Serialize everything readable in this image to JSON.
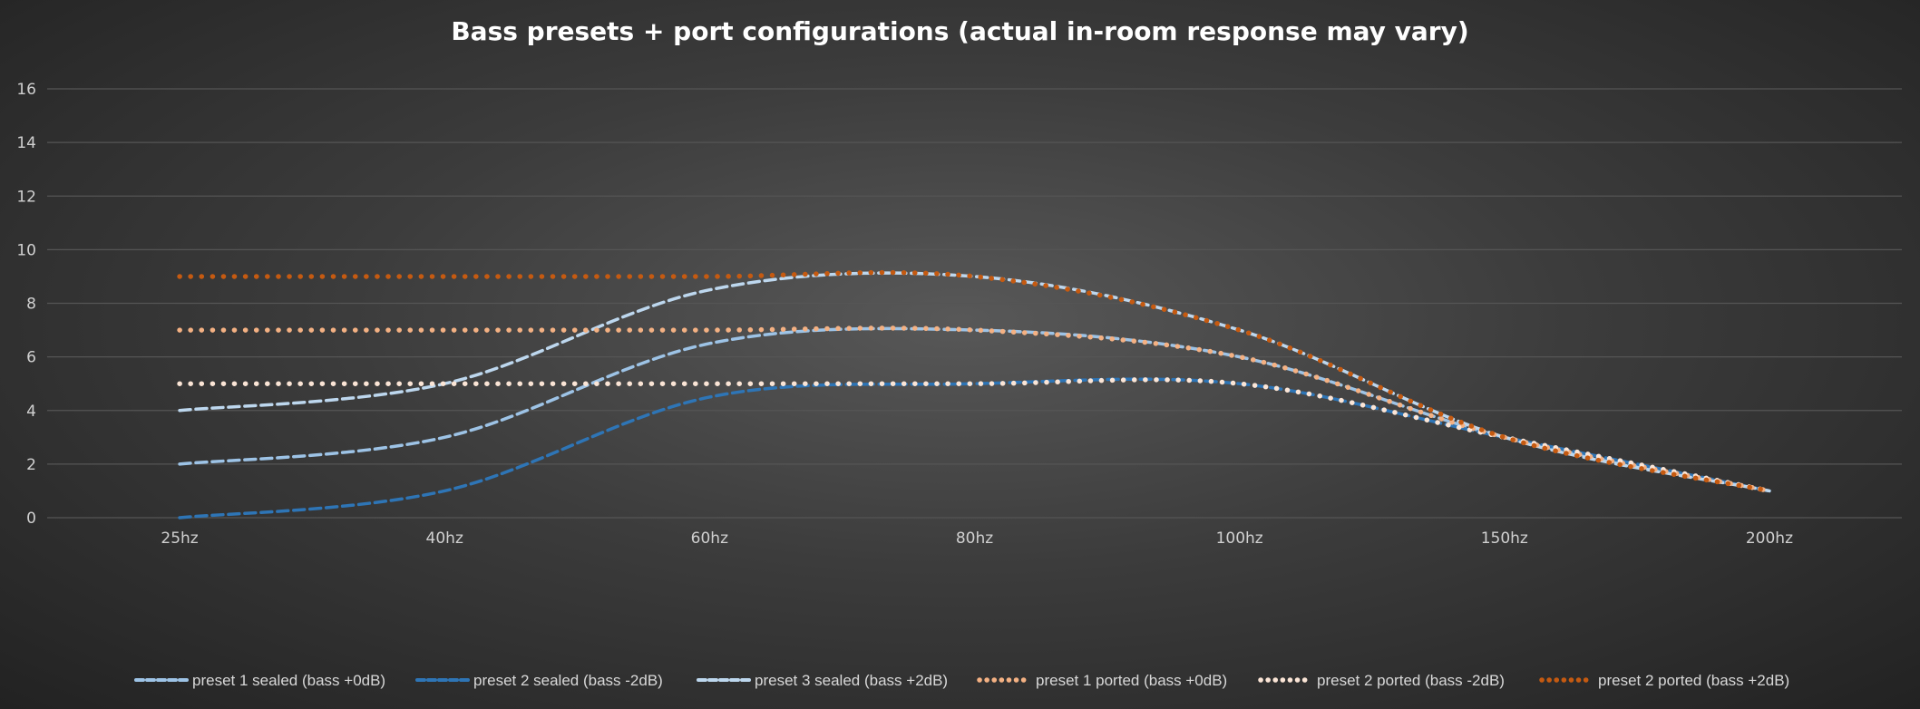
{
  "chart_data": {
    "type": "line",
    "title": "Bass presets + port configurations (actual in-room response may vary)",
    "xlabel": "",
    "ylabel": "",
    "categories": [
      "25hz",
      "40hz",
      "60hz",
      "80hz",
      "100hz",
      "150hz",
      "200hz"
    ],
    "ylim": [
      0,
      16
    ],
    "yticks": [
      0,
      2,
      4,
      6,
      8,
      10,
      12,
      14,
      16
    ],
    "grid": true,
    "smooth": true,
    "legend": "bottom",
    "series": [
      {
        "name": "preset 1 sealed (bass +0dB)",
        "color": "#9dc3e6",
        "style": "dash",
        "values": [
          2,
          3,
          6.5,
          7,
          6,
          3,
          1
        ]
      },
      {
        "name": "preset 2 sealed (bass -2dB)",
        "color": "#2e75b6",
        "style": "dash",
        "values": [
          0,
          1,
          4.5,
          5,
          5,
          3,
          1
        ]
      },
      {
        "name": "preset 3 sealed (bass +2dB)",
        "color": "#bdd7ee",
        "style": "dash",
        "values": [
          4,
          5,
          8.5,
          9,
          7,
          3,
          1
        ]
      },
      {
        "name": "preset 1 ported (bass +0dB)",
        "color": "#f4b183",
        "style": "dot",
        "values": [
          7,
          7,
          7,
          7,
          6,
          3,
          1
        ]
      },
      {
        "name": "preset 2 ported (bass -2dB)",
        "color": "#fbe5d6",
        "style": "dot",
        "values": [
          5,
          5,
          5,
          5,
          5,
          3,
          1
        ]
      },
      {
        "name": "preset 2 ported (bass +2dB)",
        "color": "#c55a11",
        "style": "dot",
        "values": [
          9,
          9,
          9,
          9,
          7,
          3,
          1
        ]
      }
    ]
  }
}
